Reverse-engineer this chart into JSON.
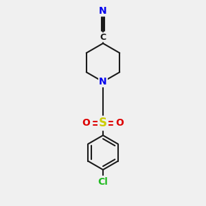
{
  "background_color": "#f0f0f0",
  "bond_color": "#1a1a1a",
  "N_color": "#0000ee",
  "O_color": "#dd0000",
  "S_color": "#cccc00",
  "Cl_color": "#22bb22",
  "line_width": 1.5,
  "figsize": [
    3.0,
    3.0
  ],
  "dpi": 100,
  "xlim": [
    0,
    10
  ],
  "ylim": [
    0,
    10
  ]
}
